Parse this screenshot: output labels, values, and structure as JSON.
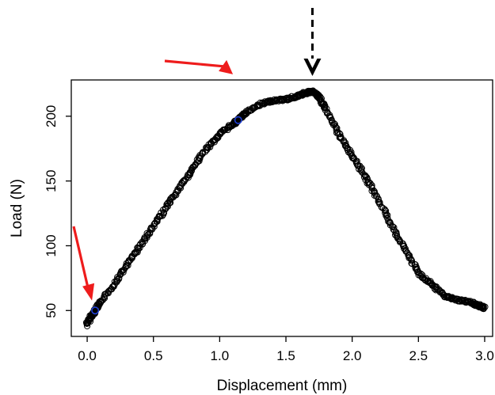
{
  "chart_data": {
    "type": "scatter",
    "title": "",
    "xlabel": "Displacement (mm)",
    "ylabel": "Load (N)",
    "xlim": [
      -0.12,
      3.06
    ],
    "ylim": [
      30,
      228
    ],
    "xticks": [
      0.0,
      0.5,
      1.0,
      1.5,
      2.0,
      2.5,
      3.0
    ],
    "xtick_labels": [
      "0.0",
      "0.5",
      "1.0",
      "1.5",
      "2.0",
      "2.5",
      "3.0"
    ],
    "yticks": [
      50,
      100,
      150,
      200
    ],
    "ytick_labels": [
      "50",
      "100",
      "150",
      "200"
    ],
    "grid": false,
    "marker": "open-circle",
    "colors": {
      "points": "#000000",
      "highlight": "#1f3fd6",
      "red_arrow": "#ee1c1c",
      "black_arrow": "#000000"
    },
    "curve": {
      "x": [
        0.0,
        0.03,
        0.06,
        0.1,
        0.2,
        0.3,
        0.4,
        0.5,
        0.6,
        0.7,
        0.8,
        0.9,
        1.0,
        1.1,
        1.15,
        1.2,
        1.3,
        1.4,
        1.5,
        1.6,
        1.65,
        1.7,
        1.75,
        1.8,
        1.9,
        2.0,
        2.1,
        2.2,
        2.3,
        2.4,
        2.5,
        2.6,
        2.7,
        2.8,
        2.9,
        2.95,
        3.0
      ],
      "y": [
        40,
        45,
        50,
        56,
        70,
        85,
        100,
        115,
        130,
        145,
        160,
        175,
        186,
        194,
        198,
        203,
        209,
        212,
        213,
        216,
        218,
        219,
        215,
        205,
        186,
        170,
        153,
        135,
        115,
        97,
        79,
        70,
        61,
        58,
        56,
        54,
        52
      ]
    },
    "highlighted_points": [
      {
        "x": 0.06,
        "y": 50
      },
      {
        "x": 1.14,
        "y": 197
      }
    ],
    "annotations": [
      {
        "type": "arrow",
        "style": "solid",
        "color": "red",
        "points_to": {
          "x": 0.03,
          "y": 54
        }
      },
      {
        "type": "arrow",
        "style": "solid",
        "color": "red",
        "points_to": {
          "x": 1.1,
          "y": 200
        }
      },
      {
        "type": "arrow",
        "style": "dashed",
        "color": "black",
        "points_to": {
          "x": 1.7,
          "y": 224
        }
      }
    ]
  }
}
